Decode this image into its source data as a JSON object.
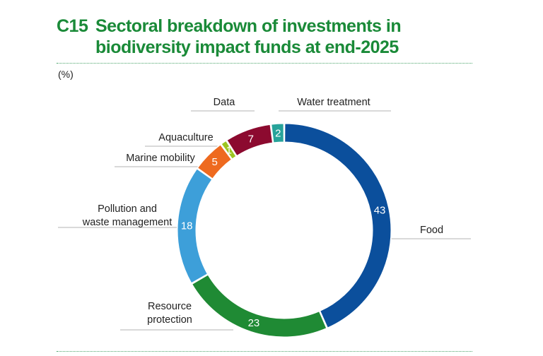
{
  "figure": {
    "code": "C15",
    "title": "Sectoral breakdown of investments in biodiversity impact funds at end-2025",
    "unit": "(%)"
  },
  "chart_data": {
    "type": "pie",
    "donut": true,
    "order": "clockwise from top",
    "slices": [
      {
        "label": "Food",
        "value": 43,
        "color": "#0b4f9c"
      },
      {
        "label": "Resource protection",
        "value": 23,
        "color": "#1f8a34"
      },
      {
        "label": "Pollution and waste management",
        "value": 18,
        "color": "#3d9fd9"
      },
      {
        "label": "Marine mobility",
        "value": 5,
        "color": "#ee6a1f"
      },
      {
        "label": "Aquaculture",
        "value": 1,
        "color": "#9cc521"
      },
      {
        "label": "Data",
        "value": 7,
        "color": "#8c0a2f"
      },
      {
        "label": "Water treatment",
        "value": 2,
        "color": "#27a39a"
      }
    ],
    "labels_display": [
      [
        "Food"
      ],
      [
        "Resource",
        "protection"
      ],
      [
        "Pollution and",
        "waste management"
      ],
      [
        "Marine mobility"
      ],
      [
        "Aquaculture"
      ],
      [
        "Data"
      ],
      [
        "Water treatment"
      ]
    ]
  }
}
